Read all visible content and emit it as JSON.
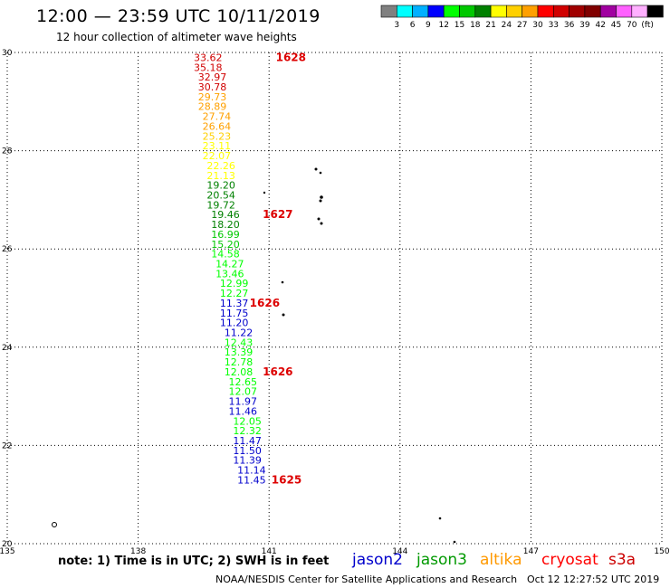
{
  "header": {
    "title": "12:00 — 23:59 UTC 10/11/2019",
    "subtitle": "12 hour collection of altimeter wave heights"
  },
  "legend": {
    "colors": [
      "#808080",
      "#00ffff",
      "#00b0ff",
      "#0000ff",
      "#00ff00",
      "#00c800",
      "#008000",
      "#ffff00",
      "#ffd000",
      "#ffa000",
      "#ff0000",
      "#d00000",
      "#a00000",
      "#800000",
      "#a000a0",
      "#ff60ff",
      "#ffb0ff",
      "#000000"
    ],
    "labels": [
      "3",
      "6",
      "9",
      "12",
      "15",
      "18",
      "21",
      "24",
      "27",
      "30",
      "33",
      "36",
      "39",
      "42",
      "45",
      "70",
      "(ft)"
    ]
  },
  "footer": {
    "note": "note:  1) Time is in UTC;  2) SWH is in feet",
    "credit": "NOAA/NESDIS Center for Satellite Applications and Research",
    "timestamp": "Oct 12 12:27:52 UTC 2019",
    "satellites": [
      {
        "name": "jason2",
        "color": "#0000cc"
      },
      {
        "name": "jason3",
        "color": "#009900"
      },
      {
        "name": "altika",
        "color": "#ff9900"
      },
      {
        "name": "cryosat",
        "color": "#ff0000"
      },
      {
        "name": "s3a",
        "color": "#cc0000"
      }
    ]
  },
  "chart_data": {
    "type": "scatter",
    "xlim": [
      135,
      150
    ],
    "ylim": [
      20,
      30
    ],
    "x_ticks": [
      "135",
      "138",
      "141",
      "144",
      "147",
      "150"
    ],
    "y_ticks": [
      "20",
      "22",
      "24",
      "26",
      "28",
      "30"
    ],
    "grid": true,
    "values": [
      {
        "x": 139.6,
        "y": 29.9,
        "label": "33.62",
        "color": "#d00000"
      },
      {
        "x": 139.6,
        "y": 29.7,
        "label": "35.18",
        "color": "#d00000"
      },
      {
        "x": 139.7,
        "y": 29.5,
        "label": "32.97",
        "color": "#d00000"
      },
      {
        "x": 139.7,
        "y": 29.3,
        "label": "30.78",
        "color": "#d00000"
      },
      {
        "x": 139.7,
        "y": 29.1,
        "label": "29.73",
        "color": "#ffa000"
      },
      {
        "x": 139.7,
        "y": 28.9,
        "label": "28.89",
        "color": "#ffa000"
      },
      {
        "x": 139.8,
        "y": 28.7,
        "label": "27.74",
        "color": "#ffa000"
      },
      {
        "x": 139.8,
        "y": 28.5,
        "label": "26.64",
        "color": "#ffa000"
      },
      {
        "x": 139.8,
        "y": 28.3,
        "label": "25.23",
        "color": "#ffd000"
      },
      {
        "x": 139.8,
        "y": 28.1,
        "label": "23.11",
        "color": "#ffff00"
      },
      {
        "x": 139.8,
        "y": 27.9,
        "label": "22.07",
        "color": "#ffff00"
      },
      {
        "x": 139.9,
        "y": 27.7,
        "label": "22.26",
        "color": "#ffff00"
      },
      {
        "x": 139.9,
        "y": 27.5,
        "label": "21.13",
        "color": "#ffff00"
      },
      {
        "x": 139.9,
        "y": 27.3,
        "label": "19.20",
        "color": "#008000"
      },
      {
        "x": 139.9,
        "y": 27.1,
        "label": "20.54",
        "color": "#008000"
      },
      {
        "x": 139.9,
        "y": 26.9,
        "label": "19.72",
        "color": "#008000"
      },
      {
        "x": 140.0,
        "y": 26.7,
        "label": "19.46",
        "color": "#008000"
      },
      {
        "x": 140.0,
        "y": 26.5,
        "label": "18.20",
        "color": "#008000"
      },
      {
        "x": 140.0,
        "y": 26.3,
        "label": "16.99",
        "color": "#00c800"
      },
      {
        "x": 140.0,
        "y": 26.1,
        "label": "15.20",
        "color": "#00c800"
      },
      {
        "x": 140.0,
        "y": 25.9,
        "label": "14.58",
        "color": "#00ff00"
      },
      {
        "x": 140.1,
        "y": 25.7,
        "label": "14.27",
        "color": "#00ff00"
      },
      {
        "x": 140.1,
        "y": 25.5,
        "label": "13.46",
        "color": "#00ff00"
      },
      {
        "x": 140.2,
        "y": 25.3,
        "label": "12.99",
        "color": "#00ff00"
      },
      {
        "x": 140.2,
        "y": 25.1,
        "label": "12.27",
        "color": "#00ff00"
      },
      {
        "x": 140.2,
        "y": 24.9,
        "label": "11.37",
        "color": "#0000cc"
      },
      {
        "x": 140.2,
        "y": 24.7,
        "label": "11.75",
        "color": "#0000cc"
      },
      {
        "x": 140.2,
        "y": 24.5,
        "label": "11.20",
        "color": "#0000cc"
      },
      {
        "x": 140.3,
        "y": 24.3,
        "label": "11.22",
        "color": "#0000cc"
      },
      {
        "x": 140.3,
        "y": 24.1,
        "label": "12.43",
        "color": "#00ff00"
      },
      {
        "x": 140.3,
        "y": 23.9,
        "label": "13.39",
        "color": "#00ff00"
      },
      {
        "x": 140.3,
        "y": 23.7,
        "label": "12.78",
        "color": "#00ff00"
      },
      {
        "x": 140.3,
        "y": 23.5,
        "label": "12.08",
        "color": "#00ff00"
      },
      {
        "x": 140.4,
        "y": 23.3,
        "label": "12.65",
        "color": "#00ff00"
      },
      {
        "x": 140.4,
        "y": 23.1,
        "label": "12.07",
        "color": "#00ff00"
      },
      {
        "x": 140.4,
        "y": 22.9,
        "label": "11.97",
        "color": "#0000cc"
      },
      {
        "x": 140.4,
        "y": 22.7,
        "label": "11.46",
        "color": "#0000cc"
      },
      {
        "x": 140.5,
        "y": 22.5,
        "label": "12.05",
        "color": "#00ff00"
      },
      {
        "x": 140.5,
        "y": 22.3,
        "label": "12.32",
        "color": "#00ff00"
      },
      {
        "x": 140.5,
        "y": 22.1,
        "label": "11.47",
        "color": "#0000cc"
      },
      {
        "x": 140.5,
        "y": 21.9,
        "label": "11.50",
        "color": "#0000cc"
      },
      {
        "x": 140.5,
        "y": 21.7,
        "label": "11.39",
        "color": "#0000cc"
      },
      {
        "x": 140.6,
        "y": 21.5,
        "label": "11.14",
        "color": "#0000cc"
      },
      {
        "x": 140.6,
        "y": 21.3,
        "label": "11.45",
        "color": "#0000cc"
      }
    ],
    "time_labels": [
      {
        "x": 141.5,
        "y": 29.9,
        "label": "1628",
        "color": "#dd0000"
      },
      {
        "x": 141.2,
        "y": 26.7,
        "label": "1627",
        "color": "#dd0000"
      },
      {
        "x": 140.9,
        "y": 24.9,
        "label": "1626",
        "color": "#dd0000"
      },
      {
        "x": 141.2,
        "y": 23.5,
        "label": "1626",
        "color": "#dd0000"
      },
      {
        "x": 141.4,
        "y": 21.3,
        "label": "1625",
        "color": "#dd0000"
      }
    ]
  }
}
